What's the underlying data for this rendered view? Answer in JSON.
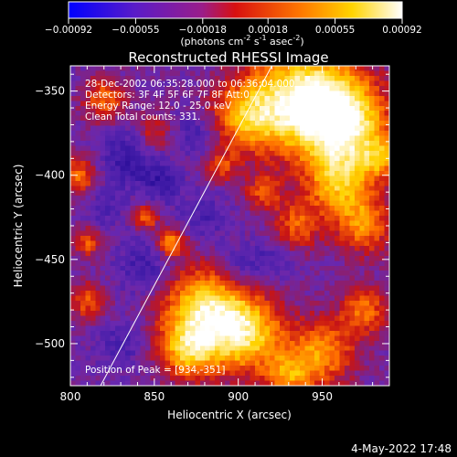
{
  "chart_data": {
    "type": "heatmap",
    "title": "Reconstructed RHESSI Image",
    "xlabel": "Heliocentric X (arcsec)",
    "ylabel": "Heliocentric Y (arcsec)",
    "xlim": [
      800,
      990
    ],
    "ylim": [
      -525,
      -335
    ],
    "x_ticks": [
      800,
      850,
      900,
      950
    ],
    "x_tick_labels": [
      "800",
      "850",
      "900",
      "950"
    ],
    "y_ticks": [
      -350,
      -400,
      -450,
      -500
    ],
    "y_tick_labels": [
      "-350",
      "-400",
      "-450",
      "-500"
    ],
    "colorbar": {
      "range": [
        -0.00092,
        0.00092
      ],
      "ticks": [
        -0.00092,
        -0.00055,
        -0.00018,
        0.00018,
        0.00055,
        0.00092
      ],
      "tick_labels": [
        "-0.00092",
        "-0.00055",
        "-0.00018",
        "0.00018",
        "0.00055",
        "0.00092"
      ],
      "label_main": "(photons cm",
      "label_exp1": "-2",
      "label_mid1": " s",
      "label_exp2": "-1",
      "label_mid2": " asec",
      "label_exp3": "-2",
      "label_end": ")",
      "colormap": "rainbow-to-hot: blue, purple, red, orange, yellow, white"
    },
    "annotations": {
      "time_range": "28-Dec-2002 06:35:28.000 to 06:36:04.000",
      "detectors": "Detectors: 3F 4F 5F 6F 7F 8F  Att:0",
      "energy": "Energy Range: 12.0 - 25.0 keV",
      "method": "Clean     Total counts: 331.",
      "peak": "Position of Peak = [934,-351]"
    },
    "limb_line": {
      "x": [
        818,
        920
      ],
      "y": [
        -525,
        -335
      ]
    },
    "grid": false,
    "hot_regions": [
      {
        "x": 940,
        "y": -355,
        "sigma": 22,
        "amp": 1.0
      },
      {
        "x": 965,
        "y": -370,
        "sigma": 18,
        "amp": 0.8
      },
      {
        "x": 905,
        "y": -365,
        "sigma": 15,
        "amp": 0.6
      },
      {
        "x": 960,
        "y": -405,
        "sigma": 14,
        "amp": 0.65
      },
      {
        "x": 975,
        "y": -430,
        "sigma": 12,
        "amp": 0.55
      },
      {
        "x": 935,
        "y": -430,
        "sigma": 10,
        "amp": 0.45
      },
      {
        "x": 880,
        "y": -480,
        "sigma": 18,
        "amp": 0.85
      },
      {
        "x": 905,
        "y": -495,
        "sigma": 16,
        "amp": 0.75
      },
      {
        "x": 870,
        "y": -505,
        "sigma": 12,
        "amp": 0.6
      },
      {
        "x": 950,
        "y": -505,
        "sigma": 14,
        "amp": 0.6
      },
      {
        "x": 975,
        "y": -480,
        "sigma": 10,
        "amp": 0.5
      },
      {
        "x": 930,
        "y": -520,
        "sigma": 10,
        "amp": 0.5
      },
      {
        "x": 860,
        "y": -440,
        "sigma": 6,
        "amp": 0.6
      },
      {
        "x": 845,
        "y": -425,
        "sigma": 5,
        "amp": 0.55
      },
      {
        "x": 805,
        "y": -400,
        "sigma": 8,
        "amp": 0.5
      },
      {
        "x": 810,
        "y": -440,
        "sigma": 6,
        "amp": 0.45
      },
      {
        "x": 810,
        "y": -475,
        "sigma": 8,
        "amp": 0.45
      },
      {
        "x": 820,
        "y": -355,
        "sigma": 9,
        "amp": 0.5
      },
      {
        "x": 850,
        "y": -375,
        "sigma": 8,
        "amp": 0.35
      },
      {
        "x": 890,
        "y": -395,
        "sigma": 7,
        "amp": 0.35
      },
      {
        "x": 915,
        "y": -410,
        "sigma": 8,
        "amp": 0.4
      },
      {
        "x": 985,
        "y": -390,
        "sigma": 8,
        "amp": 0.45
      }
    ],
    "cold_regions": [
      {
        "x": 835,
        "y": -390,
        "sigma": 12,
        "amp": 0.9
      },
      {
        "x": 855,
        "y": -405,
        "sigma": 8,
        "amp": 0.8
      },
      {
        "x": 875,
        "y": -375,
        "sigma": 9,
        "amp": 0.7
      },
      {
        "x": 845,
        "y": -455,
        "sigma": 12,
        "amp": 0.8
      },
      {
        "x": 880,
        "y": -425,
        "sigma": 10,
        "amp": 0.6
      },
      {
        "x": 900,
        "y": -455,
        "sigma": 10,
        "amp": 0.7
      },
      {
        "x": 920,
        "y": -450,
        "sigma": 8,
        "amp": 0.6
      },
      {
        "x": 830,
        "y": -500,
        "sigma": 10,
        "amp": 0.6
      },
      {
        "x": 820,
        "y": -420,
        "sigma": 8,
        "amp": 0.5
      }
    ]
  },
  "footer": {
    "date": "4-May-2022 17:48"
  }
}
